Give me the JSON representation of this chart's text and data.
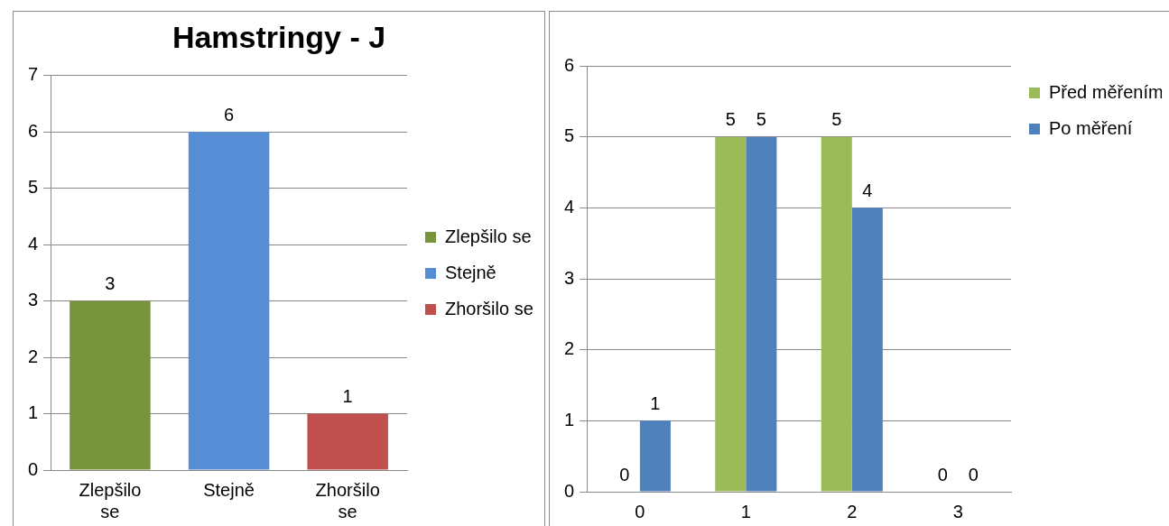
{
  "chart_data": [
    {
      "type": "bar",
      "title": "Hamstringy - J",
      "categories": [
        "Zlepšilo se",
        "Stejně",
        "Zhoršilo se"
      ],
      "series": [
        {
          "name": "Zlepšilo se",
          "color": "#77933c",
          "values": [
            3,
            null,
            null
          ]
        },
        {
          "name": "Stejně",
          "color": "#558ed5",
          "values": [
            null,
            6,
            null
          ]
        },
        {
          "name": "Zhoršilo se",
          "color": "#c0504d",
          "values": [
            null,
            null,
            1
          ]
        }
      ],
      "ylim": [
        0,
        7
      ],
      "yticks": [
        0,
        1,
        2,
        3,
        4,
        5,
        6,
        7
      ],
      "grid": "y",
      "legend": "right",
      "data_labels": true
    },
    {
      "type": "bar",
      "categories": [
        "0",
        "1",
        "2",
        "3"
      ],
      "series": [
        {
          "name": "Před měřením",
          "color": "#9bbb59",
          "values": [
            0,
            5,
            5,
            0
          ]
        },
        {
          "name": "Po měření",
          "color": "#4f81bd",
          "values": [
            1,
            5,
            4,
            0
          ]
        }
      ],
      "ylim": [
        0,
        6
      ],
      "yticks": [
        0,
        1,
        2,
        3,
        4,
        5,
        6
      ],
      "grid": "y",
      "legend": "top right",
      "data_labels": true
    }
  ]
}
